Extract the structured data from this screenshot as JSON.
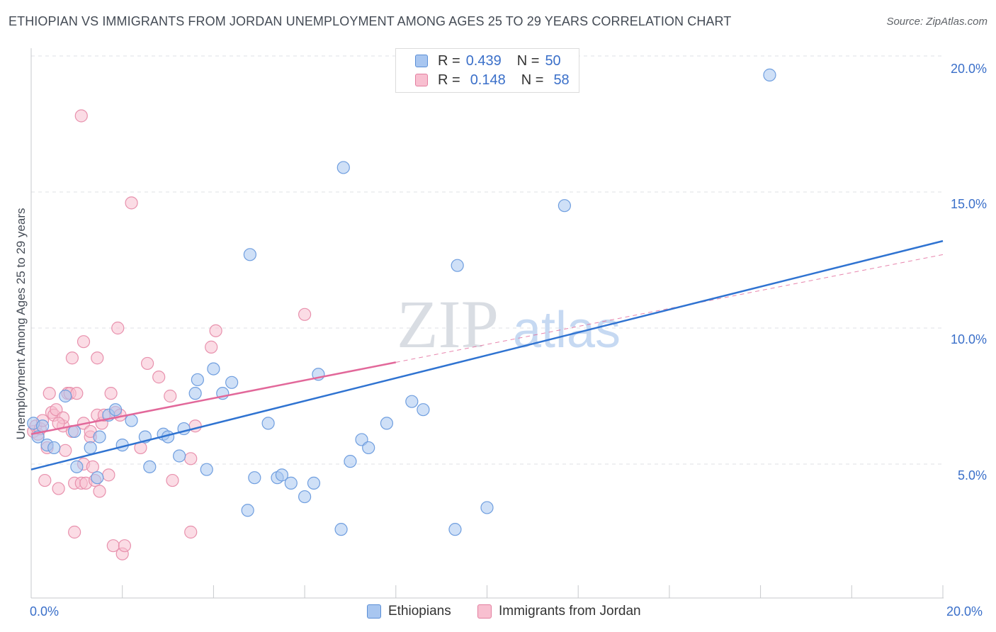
{
  "title": "ETHIOPIAN VS IMMIGRANTS FROM JORDAN UNEMPLOYMENT AMONG AGES 25 TO 29 YEARS CORRELATION CHART",
  "source": "Source: ZipAtlas.com",
  "watermark": {
    "part1": "ZIP",
    "part2": "atlas"
  },
  "legend": {
    "rows": [
      {
        "r_label": "R =",
        "r_value": "0.439",
        "n_label": "N =",
        "n_value": "50",
        "color": "#a8c6f0",
        "border": "#5b8fd6"
      },
      {
        "r_label": "R =",
        "r_value": "0.148",
        "n_label": "N =",
        "n_value": "58",
        "color": "#f8bfd0",
        "border": "#e37fa0"
      }
    ]
  },
  "bottom_legend": [
    {
      "label": "Ethiopians",
      "color": "#a8c6f0",
      "border": "#5b8fd6"
    },
    {
      "label": "Immigrants from Jordan",
      "color": "#f8bfd0",
      "border": "#e37fa0"
    }
  ],
  "colors": {
    "blue_fill": "#a8c6f0",
    "blue_stroke": "#6f9edf",
    "blue_line": "#2f73d1",
    "pink_fill": "#f8bfd0",
    "pink_stroke": "#e891ad",
    "pink_line": "#e2689a",
    "grid": "#dfe1e5",
    "tick_text": "#3a6fc9"
  },
  "chart_data": {
    "type": "scatter",
    "title": "ETHIOPIAN VS IMMIGRANTS FROM JORDAN UNEMPLOYMENT AMONG AGES 25 TO 29 YEARS CORRELATION CHART",
    "xlabel": "",
    "ylabel": "Unemployment Among Ages 25 to 29 years",
    "xlim": [
      0,
      20
    ],
    "ylim": [
      0,
      20
    ],
    "x_tick_labels": [
      "0.0%",
      "20.0%"
    ],
    "y_ticks": [
      5,
      10,
      15,
      20
    ],
    "y_tick_labels": [
      "5.0%",
      "10.0%",
      "15.0%",
      "20.0%"
    ],
    "grid": true,
    "series": [
      {
        "name": "Ethiopians",
        "r": 0.439,
        "n": 50,
        "trend": {
          "x": [
            0,
            20
          ],
          "y": [
            4.8,
            13.2
          ],
          "x_solid_end": 20
        },
        "points": [
          [
            0.05,
            6.5
          ],
          [
            0.15,
            6.0
          ],
          [
            0.25,
            6.4
          ],
          [
            0.35,
            5.7
          ],
          [
            0.5,
            5.6
          ],
          [
            0.75,
            7.5
          ],
          [
            1.0,
            4.9
          ],
          [
            0.95,
            6.2
          ],
          [
            1.3,
            5.6
          ],
          [
            1.5,
            6.0
          ],
          [
            1.7,
            6.8
          ],
          [
            1.85,
            7.0
          ],
          [
            2.2,
            6.6
          ],
          [
            2.6,
            4.9
          ],
          [
            2.5,
            6.0
          ],
          [
            2.0,
            5.7
          ],
          [
            2.9,
            6.1
          ],
          [
            3.0,
            6.0
          ],
          [
            3.25,
            5.3
          ],
          [
            3.35,
            6.3
          ],
          [
            3.6,
            7.6
          ],
          [
            3.65,
            8.1
          ],
          [
            3.85,
            4.8
          ],
          [
            4.0,
            8.5
          ],
          [
            4.2,
            7.6
          ],
          [
            4.4,
            8.0
          ],
          [
            4.75,
            3.3
          ],
          [
            4.8,
            12.7
          ],
          [
            4.9,
            4.5
          ],
          [
            5.2,
            6.5
          ],
          [
            5.4,
            4.5
          ],
          [
            5.5,
            4.6
          ],
          [
            5.7,
            4.3
          ],
          [
            6.0,
            3.8
          ],
          [
            6.2,
            4.3
          ],
          [
            6.3,
            8.3
          ],
          [
            6.8,
            2.6
          ],
          [
            6.85,
            15.9
          ],
          [
            7.0,
            5.1
          ],
          [
            7.25,
            5.9
          ],
          [
            7.4,
            5.6
          ],
          [
            7.8,
            6.5
          ],
          [
            8.35,
            7.3
          ],
          [
            8.6,
            7.0
          ],
          [
            9.3,
            2.6
          ],
          [
            9.35,
            12.3
          ],
          [
            10.0,
            3.4
          ],
          [
            11.7,
            14.5
          ],
          [
            16.2,
            19.3
          ],
          [
            1.45,
            4.5
          ]
        ]
      },
      {
        "name": "Immigrants from Jordan",
        "r": 0.148,
        "n": 58,
        "trend": {
          "x": [
            0,
            20
          ],
          "y": [
            6.1,
            12.7
          ],
          "x_solid_end": 8.0
        },
        "points": [
          [
            0.05,
            6.2
          ],
          [
            0.1,
            6.4
          ],
          [
            0.15,
            6.1
          ],
          [
            0.2,
            6.3
          ],
          [
            0.25,
            6.6
          ],
          [
            0.3,
            4.4
          ],
          [
            0.35,
            5.6
          ],
          [
            0.4,
            7.6
          ],
          [
            0.45,
            6.9
          ],
          [
            0.5,
            6.8
          ],
          [
            0.55,
            7.0
          ],
          [
            0.6,
            4.1
          ],
          [
            0.7,
            6.4
          ],
          [
            0.7,
            6.7
          ],
          [
            0.75,
            5.5
          ],
          [
            0.8,
            7.6
          ],
          [
            0.85,
            7.6
          ],
          [
            0.9,
            8.9
          ],
          [
            0.95,
            4.3
          ],
          [
            0.95,
            2.5
          ],
          [
            1.0,
            7.6
          ],
          [
            1.1,
            4.3
          ],
          [
            1.15,
            5.0
          ],
          [
            1.15,
            6.5
          ],
          [
            1.1,
            17.8
          ],
          [
            1.15,
            9.5
          ],
          [
            1.2,
            4.3
          ],
          [
            1.3,
            6.0
          ],
          [
            1.3,
            6.2
          ],
          [
            1.35,
            4.9
          ],
          [
            1.4,
            4.4
          ],
          [
            1.45,
            6.8
          ],
          [
            1.45,
            8.9
          ],
          [
            1.5,
            4.0
          ],
          [
            1.55,
            6.5
          ],
          [
            1.6,
            6.8
          ],
          [
            1.7,
            4.6
          ],
          [
            1.75,
            7.6
          ],
          [
            1.8,
            2.0
          ],
          [
            1.85,
            6.9
          ],
          [
            1.9,
            10.0
          ],
          [
            1.95,
            6.8
          ],
          [
            2.0,
            1.7
          ],
          [
            2.05,
            2.0
          ],
          [
            2.2,
            14.6
          ],
          [
            2.4,
            5.6
          ],
          [
            2.55,
            8.7
          ],
          [
            2.8,
            8.2
          ],
          [
            3.05,
            7.5
          ],
          [
            3.1,
            4.4
          ],
          [
            3.5,
            2.5
          ],
          [
            3.5,
            5.2
          ],
          [
            3.6,
            6.4
          ],
          [
            3.95,
            9.3
          ],
          [
            4.05,
            9.9
          ],
          [
            6.0,
            10.5
          ],
          [
            0.9,
            6.2
          ],
          [
            0.6,
            6.5
          ]
        ]
      }
    ]
  }
}
